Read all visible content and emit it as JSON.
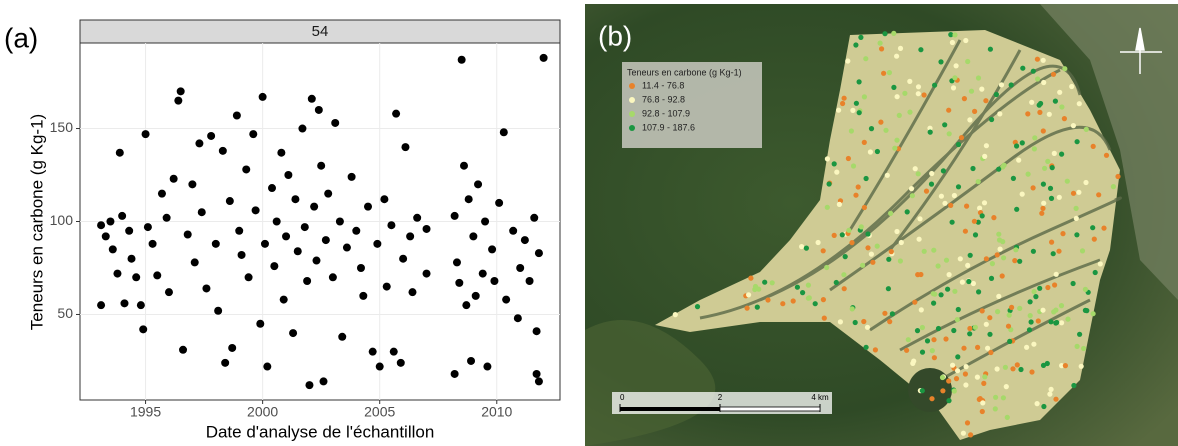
{
  "chart_data": [
    {
      "type": "scatter",
      "panel_label": "(a)",
      "facet": "54",
      "xlabel": "Date d'analyse de l'échantillon",
      "ylabel": "Teneurs en carbone (g Kg-1)",
      "color": "#000000",
      "grid": true,
      "xlim": [
        1992.2,
        2012.7
      ],
      "xticks": [
        1995,
        2000,
        2005,
        2010
      ],
      "ylim": [
        4,
        196
      ],
      "yticks": [
        50,
        100,
        150
      ],
      "x": [
        1993.1,
        1993.1,
        1993.3,
        1993.5,
        1993.6,
        1993.8,
        1993.9,
        1994.0,
        1994.1,
        1994.3,
        1994.4,
        1994.6,
        1994.8,
        1994.9,
        1995.0,
        1995.1,
        1995.3,
        1995.5,
        1995.7,
        1995.9,
        1996.0,
        1996.2,
        1996.4,
        1996.5,
        1996.6,
        1996.8,
        1997.0,
        1997.1,
        1997.3,
        1997.4,
        1997.6,
        1997.8,
        1998.0,
        1998.1,
        1998.3,
        1998.4,
        1998.6,
        1998.7,
        1998.9,
        1999.0,
        1999.1,
        1999.3,
        1999.4,
        1999.6,
        1999.7,
        1999.9,
        2000.0,
        2000.1,
        2000.2,
        2000.4,
        2000.5,
        2000.6,
        2000.8,
        2000.9,
        2001.0,
        2001.1,
        2001.3,
        2001.4,
        2001.5,
        2001.7,
        2001.8,
        2001.9,
        2002.0,
        2002.1,
        2002.2,
        2002.3,
        2002.4,
        2002.5,
        2002.6,
        2002.7,
        2002.8,
        2003.0,
        2003.1,
        2003.3,
        2003.4,
        2003.6,
        2003.8,
        2004.0,
        2004.2,
        2004.3,
        2004.5,
        2004.7,
        2004.9,
        2005.0,
        2005.2,
        2005.3,
        2005.5,
        2005.6,
        2005.7,
        2005.9,
        2006.0,
        2006.1,
        2006.3,
        2006.4,
        2006.6,
        2007.0,
        2007.0,
        2008.2,
        2008.2,
        2008.3,
        2008.4,
        2008.5,
        2008.6,
        2008.7,
        2008.8,
        2008.9,
        2009.0,
        2009.1,
        2009.2,
        2009.4,
        2009.5,
        2009.6,
        2009.8,
        2009.9,
        2010.1,
        2010.3,
        2010.4,
        2010.7,
        2010.9,
        2011.0,
        2011.2,
        2011.4,
        2011.6,
        2011.7,
        2011.7,
        2011.8,
        2011.8,
        2012.0
      ],
      "values": [
        55,
        98,
        92,
        100,
        85,
        72,
        137,
        103,
        56,
        95,
        80,
        70,
        55,
        42,
        147,
        97,
        88,
        71,
        115,
        102,
        62,
        123,
        165,
        170,
        31,
        93,
        120,
        78,
        142,
        105,
        64,
        146,
        88,
        52,
        138,
        24,
        111,
        32,
        157,
        95,
        82,
        128,
        70,
        147,
        106,
        45,
        167,
        88,
        22,
        118,
        76,
        100,
        137,
        58,
        92,
        125,
        40,
        112,
        84,
        150,
        97,
        68,
        12,
        166,
        108,
        79,
        160,
        130,
        14,
        90,
        115,
        70,
        153,
        100,
        38,
        86,
        124,
        95,
        75,
        60,
        108,
        30,
        88,
        22,
        112,
        65,
        98,
        30,
        158,
        24,
        80,
        140,
        92,
        62,
        102,
        96,
        72,
        103,
        18,
        78,
        67,
        187,
        130,
        55,
        112,
        25,
        92,
        60,
        120,
        72,
        100,
        22,
        85,
        68,
        110,
        148,
        58,
        95,
        48,
        75,
        90,
        68,
        102,
        18,
        41,
        83,
        14,
        188
      ]
    },
    {
      "type": "map",
      "panel_label": "(b)",
      "legend_title": "Teneurs en carbone (g Kg-1)",
      "classes": [
        {
          "name": "11.4 - 76.8",
          "color": "#e8822a"
        },
        {
          "name": "76.8 - 92.8",
          "color": "#fbf7c0"
        },
        {
          "name": "92.8 - 107.9",
          "color": "#a6d96a"
        },
        {
          "name": "107.9 - 187.6",
          "color": "#1a9641"
        }
      ],
      "scale_ticks": [
        0,
        2,
        {
          "value": 4,
          "label": "4 km"
        }
      ]
    }
  ]
}
